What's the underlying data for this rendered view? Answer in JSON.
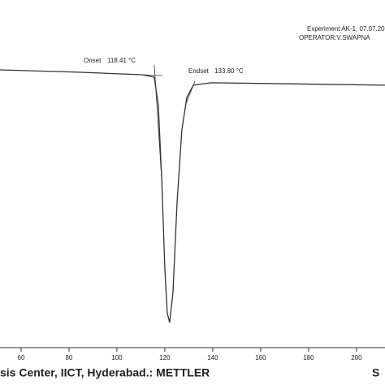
{
  "chart_data": {
    "type": "line",
    "annotations": {
      "experiment": "Experiment AK-1, 07.07.20",
      "operator": "OPERATOR:V.SWAPNA",
      "onset_label": "Onset",
      "onset": "118.41 °C",
      "endset_label": "Endset",
      "endset": "133.80 °C",
      "footer": "sis Center, IICT, Hyderabad.: METTLER",
      "footer_right": "S"
    },
    "x": [
      51.2,
      85.1,
      110.5,
      115.6,
      117.3,
      118.7,
      120.0,
      121.0,
      122.0,
      123.4,
      125.1,
      127.1,
      129.2,
      131.9,
      139.3,
      211.9
    ],
    "series": [
      {
        "color": "#333333",
        "values": [
          79.9,
          79.2,
          78.5,
          77.8,
          69.6,
          48.6,
          22.9,
          10.0,
          7.2,
          15.9,
          41.6,
          62.6,
          72.0,
          75.5,
          76.2,
          75.5
        ]
      }
    ],
    "xlim": [
      51.2,
      211.9
    ],
    "ylim": [
      0,
      100
    ],
    "xticks": [
      60,
      80,
      100,
      120,
      140,
      160,
      180,
      200
    ]
  }
}
